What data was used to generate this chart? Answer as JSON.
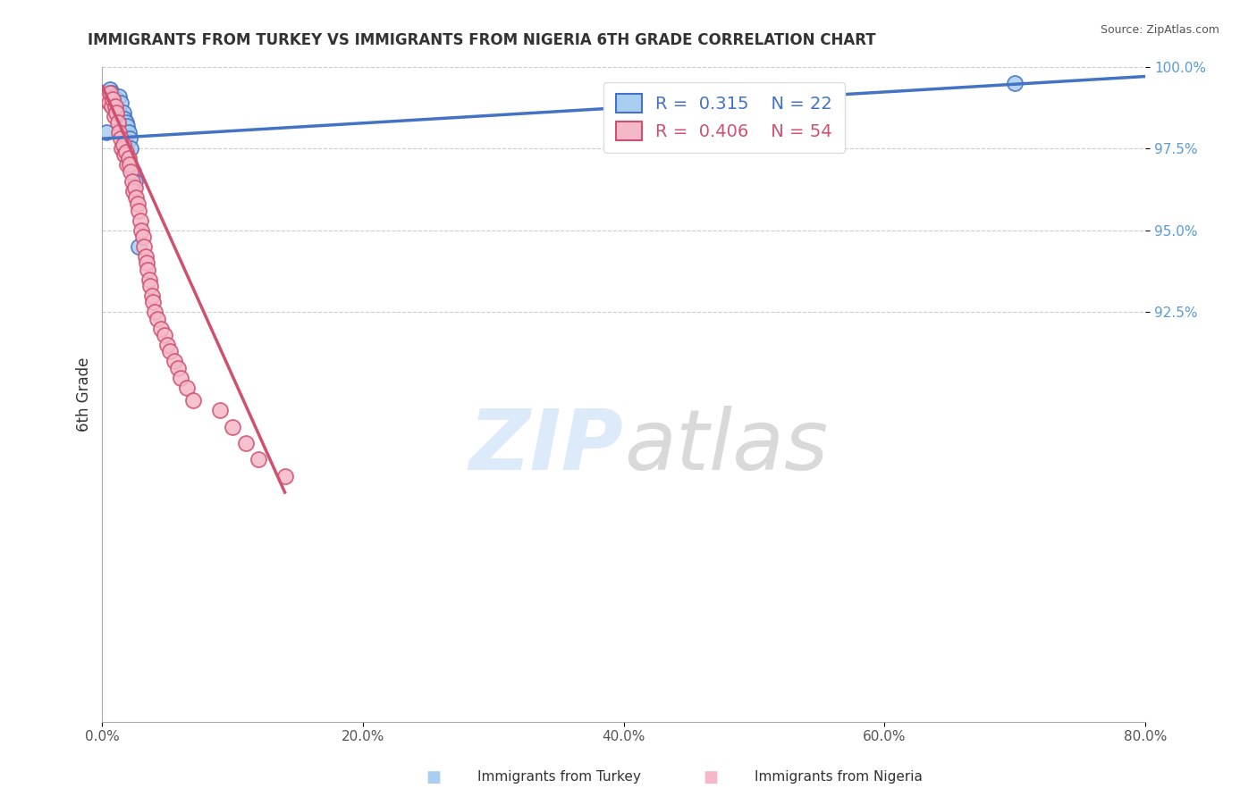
{
  "title": "IMMIGRANTS FROM TURKEY VS IMMIGRANTS FROM NIGERIA 6TH GRADE CORRELATION CHART",
  "source": "Source: ZipAtlas.com",
  "ylabel": "6th Grade",
  "watermark_zip": "ZIP",
  "watermark_atlas": "atlas",
  "xlim": [
    0.0,
    80.0
  ],
  "ylim": [
    80.0,
    100.0
  ],
  "xticks": [
    0.0,
    20.0,
    40.0,
    60.0,
    80.0
  ],
  "yticks": [
    92.5,
    95.0,
    97.5,
    100.0
  ],
  "xtick_labels": [
    "0.0%",
    "20.0%",
    "40.0%",
    "60.0%",
    "80.0%"
  ],
  "ytick_labels": [
    "92.5%",
    "95.0%",
    "97.5%",
    "100.0%"
  ],
  "legend_turkey": "Immigrants from Turkey",
  "legend_nigeria": "Immigrants from Nigeria",
  "R_turkey": 0.315,
  "N_turkey": 22,
  "R_nigeria": 0.406,
  "N_nigeria": 54,
  "color_turkey": "#A8CEF0",
  "color_nigeria": "#F5B8C8",
  "color_turkey_line": "#4472C4",
  "color_nigeria_line": "#D05070",
  "turkey_x": [
    0.3,
    0.5,
    0.6,
    0.7,
    0.8,
    0.9,
    1.0,
    1.1,
    1.3,
    1.4,
    1.5,
    1.6,
    1.7,
    1.8,
    1.9,
    2.0,
    2.1,
    2.2,
    2.4,
    2.5,
    2.8,
    70.0
  ],
  "turkey_y": [
    98.0,
    99.2,
    99.3,
    99.2,
    99.1,
    98.8,
    99.0,
    99.0,
    99.1,
    98.9,
    98.5,
    98.6,
    98.4,
    98.3,
    98.2,
    98.0,
    97.8,
    97.5,
    96.8,
    96.5,
    94.5,
    99.5
  ],
  "nigeria_x": [
    0.2,
    0.3,
    0.4,
    0.5,
    0.6,
    0.7,
    0.8,
    0.9,
    1.0,
    1.1,
    1.2,
    1.3,
    1.4,
    1.5,
    1.6,
    1.7,
    1.8,
    1.9,
    2.0,
    2.1,
    2.2,
    2.3,
    2.4,
    2.5,
    2.6,
    2.7,
    2.8,
    2.9,
    3.0,
    3.1,
    3.2,
    3.3,
    3.4,
    3.5,
    3.6,
    3.7,
    3.8,
    3.9,
    4.0,
    4.2,
    4.5,
    4.8,
    5.0,
    5.2,
    5.5,
    5.8,
    6.0,
    6.5,
    7.0,
    9.0,
    10.0,
    11.0,
    12.0,
    14.0
  ],
  "nigeria_y": [
    99.0,
    99.1,
    99.0,
    98.9,
    99.2,
    98.8,
    99.0,
    98.5,
    98.8,
    98.6,
    98.3,
    98.0,
    97.8,
    97.5,
    97.6,
    97.3,
    97.4,
    97.0,
    97.2,
    97.0,
    96.8,
    96.5,
    96.2,
    96.3,
    96.0,
    95.8,
    95.6,
    95.3,
    95.0,
    94.8,
    94.5,
    94.2,
    94.0,
    93.8,
    93.5,
    93.3,
    93.0,
    92.8,
    92.5,
    92.3,
    92.0,
    91.8,
    91.5,
    91.3,
    91.0,
    90.8,
    90.5,
    90.2,
    89.8,
    89.5,
    89.0,
    88.5,
    88.0,
    87.5
  ],
  "turkey_trendline_x": [
    0.0,
    80.0
  ],
  "turkey_trendline_y": [
    97.8,
    99.7
  ],
  "nigeria_trendline_x": [
    0.0,
    14.0
  ],
  "nigeria_trendline_y": [
    99.4,
    87.0
  ]
}
